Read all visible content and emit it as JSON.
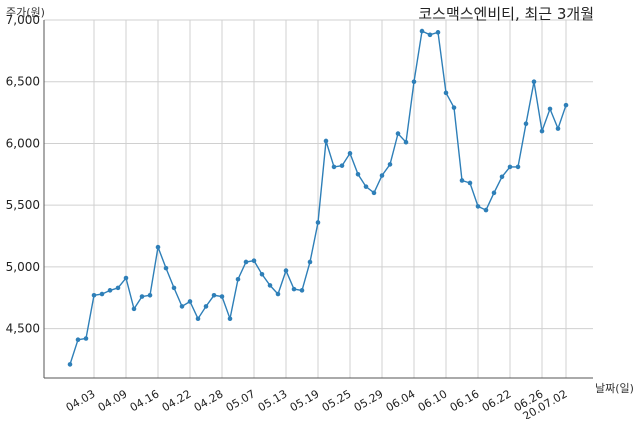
{
  "chart_data": {
    "type": "line",
    "title": "코스맥스엔비티, 최근 3개월",
    "ylabel": "주가(원)",
    "xlabel": "날짜(일)",
    "ylim": [
      4100,
      7000
    ],
    "yticks": [
      4500,
      5000,
      5500,
      6000,
      6500,
      7000
    ],
    "ytick_labels": [
      "4,500",
      "5,000",
      "5,500",
      "6,000",
      "6,500",
      "7,000"
    ],
    "xtick_labels": [
      "04.03",
      "04.09",
      "04.16",
      "04.22",
      "04.28",
      "05.07",
      "05.13",
      "05.19",
      "05.25",
      "05.29",
      "06.04",
      "06.10",
      "06.16",
      "06.22",
      "06.26",
      "20.07.02"
    ],
    "xtick_index": [
      3,
      7,
      11,
      15,
      19,
      23,
      27,
      31,
      35,
      39,
      43,
      47,
      51,
      55,
      59,
      62
    ],
    "grid": true,
    "line_color": "#2e7fb8",
    "series": [
      {
        "values": [
          4210,
          4410,
          4420,
          4770,
          4780,
          4810,
          4830,
          4910,
          4660,
          4760,
          4770,
          5160,
          4990,
          4830,
          4680,
          4720,
          4580,
          4680,
          4770,
          4760,
          4580,
          4900,
          5040,
          5050,
          4940,
          4850,
          4780,
          4970,
          4820,
          4810,
          5040,
          5360,
          6020,
          5810,
          5820,
          5920,
          5750,
          5650,
          5600,
          5740,
          5830,
          6080,
          6010,
          6500,
          6910,
          6880,
          6900,
          6410,
          6290,
          5700,
          5680,
          5490,
          5460,
          5600,
          5730,
          5810,
          5810,
          6160,
          6500,
          6100,
          6280,
          6120,
          6310
        ]
      }
    ]
  }
}
